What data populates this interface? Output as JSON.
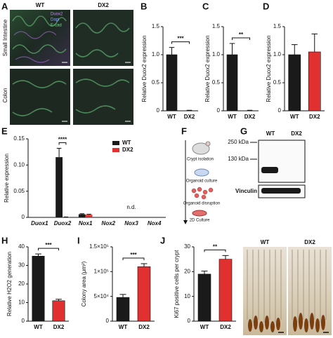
{
  "panel_a": {
    "label": "A",
    "columns": [
      "WT",
      "DX2"
    ],
    "rows": [
      "Small Intestine",
      "Colon"
    ],
    "stains": [
      "Duox2",
      "Dapi",
      "E-cad"
    ]
  },
  "panel_f": {
    "label": "F",
    "steps": [
      "Crypt isolation",
      "Organoid culture",
      "Organoid disruption",
      "2D Culture"
    ]
  },
  "panel_g": {
    "label": "G",
    "columns": [
      "WT",
      "DX2"
    ],
    "markers": [
      "250 kDa",
      "130 kDa"
    ],
    "band": "Vinculin"
  },
  "panel_j_images": {
    "columns": [
      "WT",
      "DX2"
    ]
  },
  "chart_data": [
    {
      "type": "bar",
      "panel": "B",
      "ylabel": "Relative Duox2 expression",
      "categories": [
        "WT",
        "DX2"
      ],
      "values": [
        1.0,
        0.0
      ],
      "errors": [
        0.13,
        0.01
      ],
      "colors": [
        "#1a1a1a",
        "#e03030"
      ],
      "ylim": [
        0,
        1.5
      ],
      "yticks": [
        0,
        0.5,
        {
          "value": 1,
          "label": "1.0"
        },
        1.5
      ],
      "significance": "***"
    },
    {
      "type": "bar",
      "panel": "C",
      "ylabel": "Relative Duox2 expression",
      "categories": [
        "WT",
        "DX2"
      ],
      "values": [
        1.0,
        0.0
      ],
      "errors": [
        0.2,
        0.01
      ],
      "colors": [
        "#1a1a1a",
        "#e03030"
      ],
      "ylim": [
        0,
        1.5
      ],
      "yticks": [
        0,
        0.5,
        {
          "value": 1,
          "label": "1.0"
        },
        1.5
      ],
      "significance": "**"
    },
    {
      "type": "bar",
      "panel": "D",
      "ylabel": "Relative Duox2 expression",
      "categories": [
        "WT",
        "DX2"
      ],
      "values": [
        1.0,
        1.05
      ],
      "errors": [
        0.18,
        0.32
      ],
      "colors": [
        "#1a1a1a",
        "#e03030"
      ],
      "ylim": [
        0,
        1.5
      ],
      "yticks": [
        0,
        0.5,
        {
          "value": 1,
          "label": "1.0"
        },
        1.5
      ]
    },
    {
      "type": "bar",
      "panel": "E",
      "ylabel": "Relative expression",
      "categories": [
        "Duox1",
        "Duox2",
        "Nox1",
        "Nox2",
        "Nox3",
        "Nox4"
      ],
      "series": [
        {
          "name": "WT",
          "color": "#1a1a1a",
          "values": [
            0,
            0.115,
            0.006,
            0,
            0,
            0
          ],
          "errors": [
            0,
            0.017,
            0.001,
            0,
            0,
            0
          ]
        },
        {
          "name": "DX2",
          "color": "#e03030",
          "values": [
            0,
            0.0005,
            0.005,
            0,
            0,
            0
          ],
          "errors": [
            0,
            0.0003,
            0.001,
            0,
            0,
            0
          ]
        }
      ],
      "ylim": [
        0,
        0.15
      ],
      "yticks": [
        0,
        0.05,
        {
          "value": 0.1,
          "label": "0.10"
        },
        0.15
      ],
      "significance": "****",
      "annotation": "n.d."
    },
    {
      "type": "bar",
      "panel": "H",
      "ylabel": "Relative H2O2 generation",
      "categories": [
        "WT",
        "DX2"
      ],
      "values": [
        35,
        11
      ],
      "errors": [
        1.2,
        0.8
      ],
      "colors": [
        "#1a1a1a",
        "#e03030"
      ],
      "ylim": [
        0,
        40
      ],
      "yticks": [
        0,
        10,
        20,
        30,
        40
      ],
      "significance": "***"
    },
    {
      "type": "bar",
      "panel": "I",
      "ylabel": "Colony area (μm²)",
      "categories": [
        "WT",
        "DX2"
      ],
      "values": [
        48000,
        110000
      ],
      "errors": [
        6000,
        6000
      ],
      "colors": [
        "#1a1a1a",
        "#e03030"
      ],
      "ylim": [
        0,
        150000
      ],
      "yticks": [
        0,
        {
          "value": 50000,
          "label": "5×10⁴"
        },
        {
          "value": 100000,
          "label": "1×10⁵"
        },
        {
          "value": 150000,
          "label": "1.5×10⁵"
        }
      ],
      "significance": "***"
    },
    {
      "type": "bar",
      "panel": "J",
      "ylabel": "Ki67 positive cells per crypt",
      "categories": [
        "WT",
        "DX2"
      ],
      "values": [
        19,
        25
      ],
      "errors": [
        1.2,
        1.5
      ],
      "colors": [
        "#1a1a1a",
        "#e03030"
      ],
      "ylim": [
        0,
        30
      ],
      "yticks": [
        0,
        10,
        20,
        30
      ],
      "significance": "**"
    }
  ]
}
